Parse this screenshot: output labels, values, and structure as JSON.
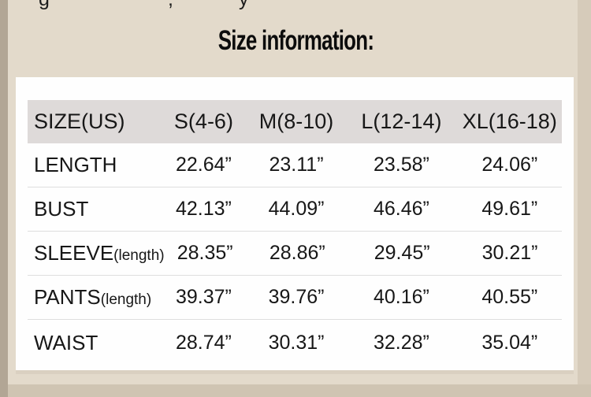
{
  "page": {
    "title": "Size information:",
    "top_clipped_fragments": {
      "f0": "g",
      "f1": ",",
      "f2": "y"
    }
  },
  "colors": {
    "background": "#e3dacb",
    "left_strip": "#b2a695",
    "bottom_strip": "#cfc4b2",
    "card": "#fefefe",
    "header_row": "#dedad9",
    "divider": "#dedede",
    "text": "#171717"
  },
  "size_table": {
    "header": {
      "label": "SIZE(US)",
      "columns": [
        "S(4-6)",
        "M(8-10)",
        "L(12-14)",
        "XL(16-18)"
      ]
    },
    "rows": [
      {
        "label": "LENGTH",
        "suffix": "",
        "values": [
          "22.64”",
          "23.11”",
          "23.58”",
          "24.06”"
        ]
      },
      {
        "label": "BUST",
        "suffix": "",
        "values": [
          "42.13”",
          "44.09”",
          "46.46”",
          "49.61”"
        ]
      },
      {
        "label": "SLEEVE",
        "suffix": "(length)",
        "values": [
          "28.35”",
          "28.86”",
          "29.45”",
          "30.21”"
        ]
      },
      {
        "label": "PANTS",
        "suffix": "(length)",
        "values": [
          "39.37”",
          "39.76”",
          "40.16”",
          "40.55”"
        ]
      },
      {
        "label": "WAIST",
        "suffix": "",
        "values": [
          "28.74”",
          "30.31”",
          "32.28”",
          "35.04”"
        ]
      }
    ]
  }
}
